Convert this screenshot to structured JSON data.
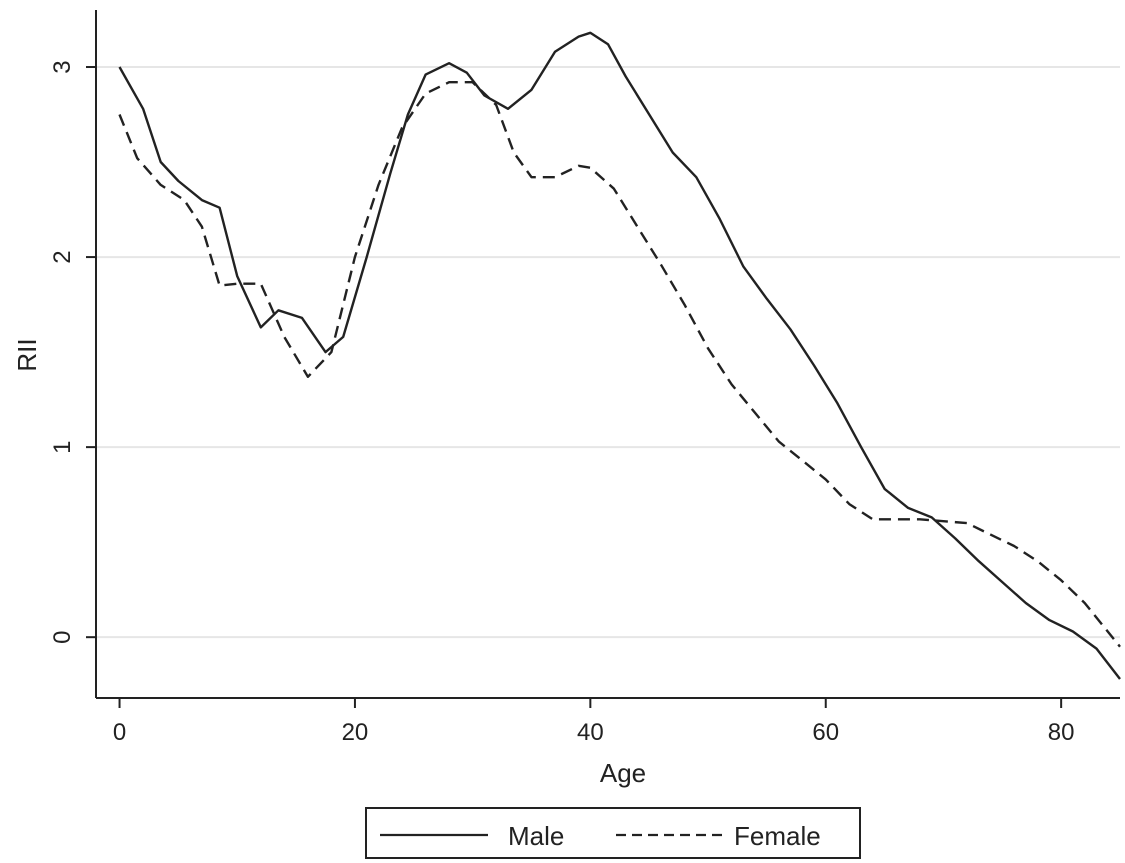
{
  "chart_data": {
    "type": "line",
    "xlabel": "Age",
    "ylabel": "RII",
    "xlim": [
      -2,
      85
    ],
    "ylim": [
      -0.32,
      3.3
    ],
    "x_ticks": [
      0,
      20,
      40,
      60,
      80
    ],
    "y_ticks": [
      0,
      1,
      2,
      3
    ],
    "grid": "horizontal",
    "legend_position": "bottom",
    "series": [
      {
        "name": "Male",
        "line_style": "solid",
        "color": "#222222",
        "x": [
          0,
          2,
          3.5,
          5,
          7,
          8.5,
          10,
          12,
          13.5,
          15.5,
          17.5,
          19,
          21,
          23,
          24.5,
          26,
          28,
          29.5,
          31,
          33,
          35,
          37,
          39,
          40,
          41.5,
          43,
          45,
          47,
          49,
          51,
          53,
          55,
          57,
          59,
          61,
          63,
          65,
          67,
          69,
          71,
          73,
          75,
          77,
          79,
          81,
          83,
          85
        ],
        "y": [
          3.0,
          2.78,
          2.5,
          2.4,
          2.3,
          2.26,
          1.9,
          1.63,
          1.72,
          1.68,
          1.5,
          1.58,
          2.0,
          2.44,
          2.75,
          2.96,
          3.02,
          2.97,
          2.85,
          2.78,
          2.88,
          3.08,
          3.16,
          3.18,
          3.12,
          2.95,
          2.75,
          2.55,
          2.42,
          2.2,
          1.95,
          1.78,
          1.62,
          1.43,
          1.23,
          1.0,
          0.78,
          0.68,
          0.63,
          0.52,
          0.4,
          0.29,
          0.18,
          0.09,
          0.03,
          -0.06,
          -0.22
        ]
      },
      {
        "name": "Female",
        "line_style": "dashed",
        "color": "#222222",
        "x": [
          0,
          1.5,
          3.5,
          5.5,
          7,
          8.5,
          10,
          12,
          14,
          16,
          18,
          20,
          22,
          24,
          26,
          28,
          30,
          32,
          33.5,
          35,
          37,
          39,
          40,
          42,
          44,
          46,
          48,
          50,
          52,
          54,
          56,
          58,
          60,
          62,
          64,
          66,
          68,
          70,
          72,
          74,
          76,
          78,
          80,
          82,
          85
        ],
        "y": [
          2.75,
          2.52,
          2.38,
          2.3,
          2.16,
          1.85,
          1.86,
          1.86,
          1.58,
          1.37,
          1.5,
          2.0,
          2.38,
          2.68,
          2.86,
          2.92,
          2.92,
          2.8,
          2.55,
          2.42,
          2.42,
          2.48,
          2.47,
          2.36,
          2.16,
          1.96,
          1.75,
          1.52,
          1.33,
          1.18,
          1.03,
          0.93,
          0.83,
          0.7,
          0.62,
          0.62,
          0.62,
          0.61,
          0.6,
          0.54,
          0.48,
          0.4,
          0.3,
          0.18,
          -0.05
        ]
      }
    ]
  }
}
